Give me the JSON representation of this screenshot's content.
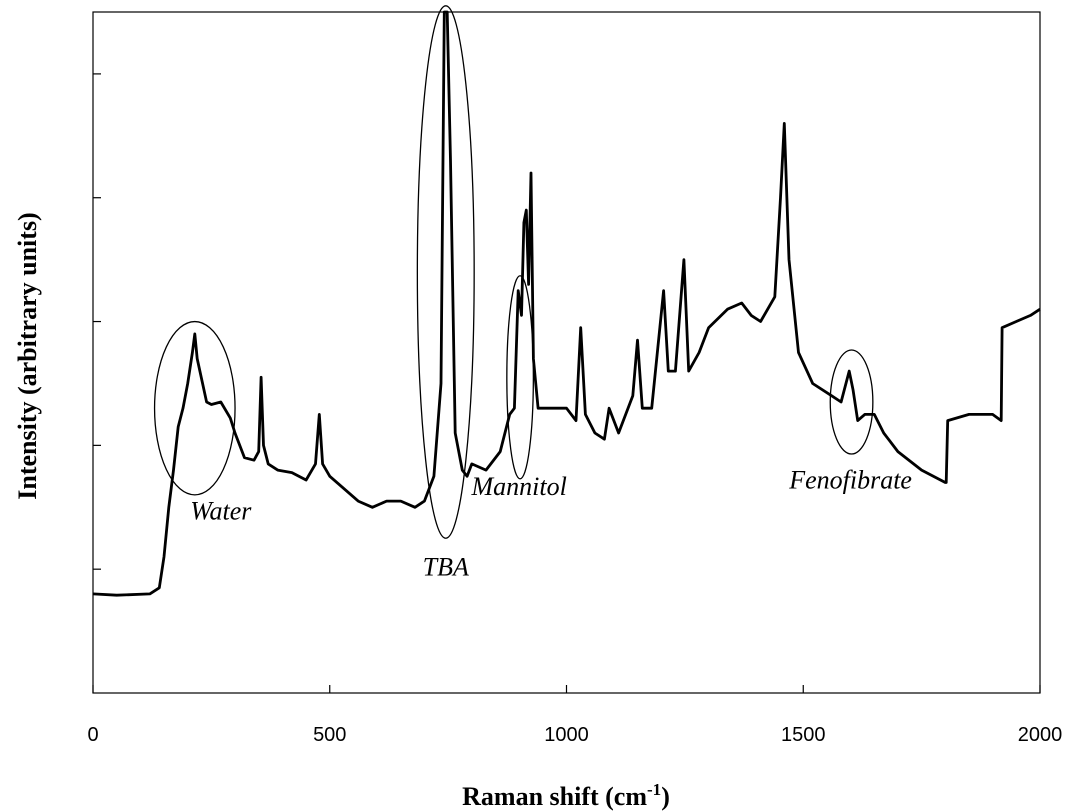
{
  "chart_data": {
    "type": "line",
    "xlabel_main": "Raman shift (cm",
    "xlabel_sup": "-1",
    "xlabel_end": ")",
    "ylabel": "Intensity (arbitrary units)",
    "xlim": [
      0,
      2000
    ],
    "ylim": [
      0,
      5.5
    ],
    "xticks": [
      0,
      500,
      1000,
      1500,
      2000
    ],
    "yticks": [
      1,
      2,
      3,
      4,
      5
    ],
    "grid": false,
    "legend": "none",
    "series": [
      {
        "color": "#000000",
        "points": [
          [
            0,
            0.8
          ],
          [
            50,
            0.79
          ],
          [
            120,
            0.8
          ],
          [
            140,
            0.85
          ],
          [
            150,
            1.1
          ],
          [
            160,
            1.5
          ],
          [
            170,
            1.8
          ],
          [
            180,
            2.15
          ],
          [
            190,
            2.3
          ],
          [
            200,
            2.5
          ],
          [
            210,
            2.75
          ],
          [
            215,
            2.9
          ],
          [
            220,
            2.7
          ],
          [
            240,
            2.35
          ],
          [
            250,
            2.33
          ],
          [
            270,
            2.35
          ],
          [
            290,
            2.22
          ],
          [
            300,
            2.1
          ],
          [
            320,
            1.9
          ],
          [
            340,
            1.88
          ],
          [
            350,
            1.95
          ],
          [
            355,
            2.55
          ],
          [
            360,
            2.0
          ],
          [
            370,
            1.85
          ],
          [
            390,
            1.8
          ],
          [
            420,
            1.78
          ],
          [
            450,
            1.72
          ],
          [
            470,
            1.85
          ],
          [
            478,
            2.25
          ],
          [
            485,
            1.85
          ],
          [
            500,
            1.75
          ],
          [
            530,
            1.65
          ],
          [
            560,
            1.55
          ],
          [
            590,
            1.5
          ],
          [
            620,
            1.55
          ],
          [
            650,
            1.55
          ],
          [
            680,
            1.5
          ],
          [
            700,
            1.55
          ],
          [
            720,
            1.75
          ],
          [
            735,
            2.5
          ],
          [
            742,
            5.5
          ],
          [
            748,
            5.5
          ],
          [
            755,
            4.3
          ],
          [
            765,
            2.1
          ],
          [
            780,
            1.8
          ],
          [
            790,
            1.75
          ],
          [
            800,
            1.85
          ],
          [
            830,
            1.8
          ],
          [
            860,
            1.95
          ],
          [
            880,
            2.25
          ],
          [
            890,
            2.3
          ],
          [
            898,
            3.25
          ],
          [
            905,
            3.05
          ],
          [
            910,
            3.8
          ],
          [
            915,
            3.9
          ],
          [
            920,
            3.3
          ],
          [
            925,
            4.2
          ],
          [
            930,
            2.7
          ],
          [
            940,
            2.3
          ],
          [
            970,
            2.3
          ],
          [
            1000,
            2.3
          ],
          [
            1020,
            2.2
          ],
          [
            1030,
            2.95
          ],
          [
            1040,
            2.25
          ],
          [
            1060,
            2.1
          ],
          [
            1080,
            2.05
          ],
          [
            1090,
            2.3
          ],
          [
            1110,
            2.1
          ],
          [
            1140,
            2.4
          ],
          [
            1150,
            2.85
          ],
          [
            1160,
            2.3
          ],
          [
            1180,
            2.3
          ],
          [
            1205,
            3.25
          ],
          [
            1215,
            2.6
          ],
          [
            1230,
            2.6
          ],
          [
            1248,
            3.5
          ],
          [
            1258,
            2.6
          ],
          [
            1280,
            2.75
          ],
          [
            1300,
            2.95
          ],
          [
            1340,
            3.1
          ],
          [
            1370,
            3.15
          ],
          [
            1390,
            3.05
          ],
          [
            1410,
            3.0
          ],
          [
            1440,
            3.2
          ],
          [
            1452,
            4.0
          ],
          [
            1460,
            4.6
          ],
          [
            1470,
            3.5
          ],
          [
            1490,
            2.75
          ],
          [
            1520,
            2.5
          ],
          [
            1560,
            2.4
          ],
          [
            1580,
            2.35
          ],
          [
            1597,
            2.6
          ],
          [
            1605,
            2.45
          ],
          [
            1615,
            2.2
          ],
          [
            1630,
            2.25
          ],
          [
            1650,
            2.25
          ],
          [
            1670,
            2.1
          ],
          [
            1700,
            1.95
          ],
          [
            1750,
            1.8
          ],
          [
            1800,
            1.7
          ],
          [
            1802,
            1.7
          ],
          [
            1805,
            2.2
          ],
          [
            1850,
            2.25
          ],
          [
            1900,
            2.25
          ],
          [
            1918,
            2.2
          ],
          [
            1920,
            2.95
          ],
          [
            1950,
            3.0
          ],
          [
            1980,
            3.05
          ],
          [
            2000,
            3.1
          ]
        ]
      }
    ],
    "annotations": [
      {
        "text": "Water",
        "x": 270,
        "y": 1.4,
        "ellipse": {
          "cx": 215,
          "cy": 2.3,
          "rx": 85,
          "ry": 0.7
        }
      },
      {
        "text": "TBA",
        "x": 745,
        "y": 0.95,
        "ellipse": {
          "cx": 745,
          "cy": 3.4,
          "rx": 60,
          "ry": 2.15
        }
      },
      {
        "text": "Mannitol",
        "x": 900,
        "y": 1.6,
        "ellipse": {
          "cx": 902,
          "cy": 2.55,
          "rx": 28,
          "ry": 0.82
        }
      },
      {
        "text": "Fenofibrate",
        "x": 1600,
        "y": 1.65,
        "ellipse": {
          "cx": 1602,
          "cy": 2.35,
          "rx": 45,
          "ry": 0.42
        }
      }
    ]
  }
}
